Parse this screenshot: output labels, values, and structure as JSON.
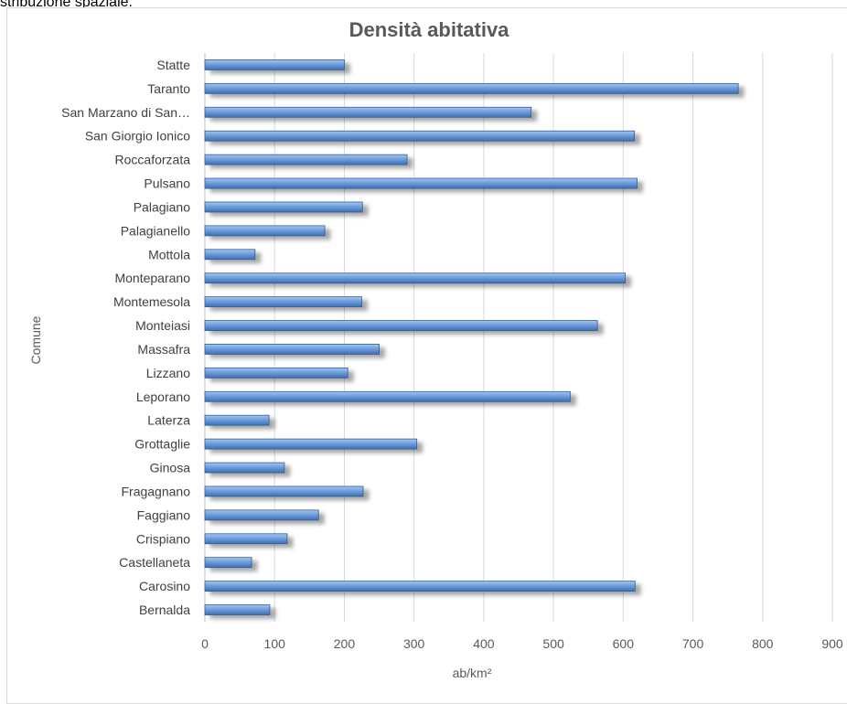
{
  "top_text": "stribuzione spaziale.",
  "chart_data": {
    "type": "bar",
    "orientation": "horizontal",
    "title": "Densità abitativa",
    "xlabel": "ab/km²",
    "ylabel": "Comune",
    "xlim": [
      0,
      900
    ],
    "xticks": [
      0,
      100,
      200,
      300,
      400,
      500,
      600,
      700,
      800,
      900
    ],
    "grid": true,
    "legend": "none",
    "bar_color": "#5b8fd0",
    "categories": [
      "Statte",
      "Taranto",
      "San Marzano di San…",
      "San Giorgio Ionico",
      "Roccaforzata",
      "Pulsano",
      "Palagiano",
      "Palagianello",
      "Mottola",
      "Monteparano",
      "Montemesola",
      "Monteiasi",
      "Massafra",
      "Lizzano",
      "Leporano",
      "Laterza",
      "Grottaglie",
      "Ginosa",
      "Fragagnano",
      "Faggiano",
      "Crispiano",
      "Castellaneta",
      "Carosino",
      "Bernalda"
    ],
    "values": [
      200,
      765,
      468,
      616,
      290,
      620,
      226,
      172,
      72,
      603,
      225,
      563,
      250,
      205,
      524,
      92,
      304,
      114,
      227,
      163,
      118,
      67,
      617,
      93
    ]
  }
}
